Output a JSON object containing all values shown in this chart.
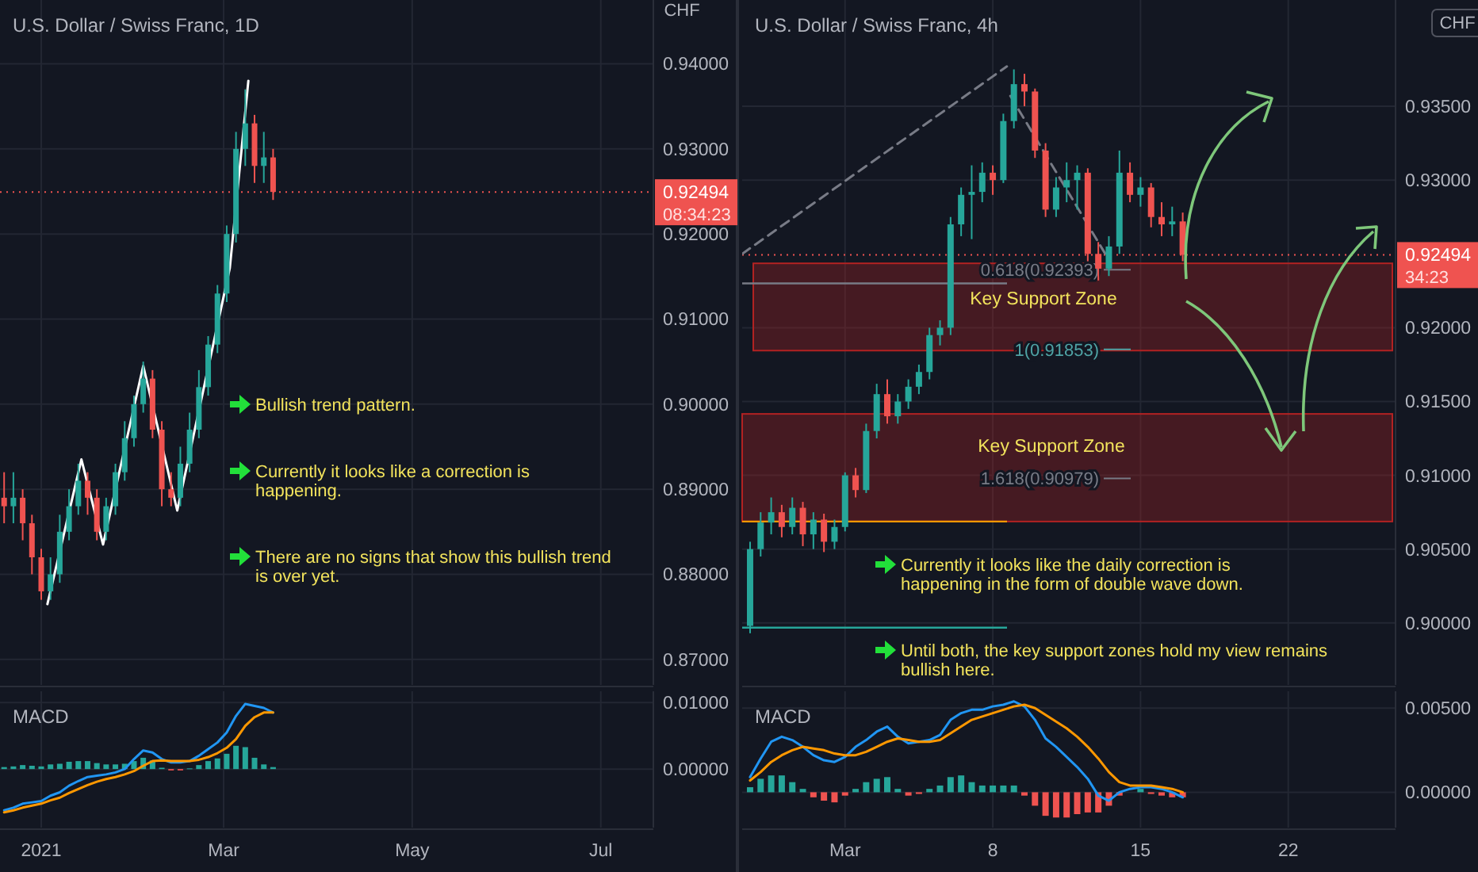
{
  "chart_data": [
    {
      "type": "candlestick",
      "title": "U.S. Dollar / Swiss Franc, 1D",
      "ylabel": "CHF",
      "x": [
        "2020-12-20",
        "2020-12-23",
        "2020-12-26",
        "2020-12-29",
        "2021-01-01",
        "2021-01-04",
        "2021-01-07",
        "2021-01-10",
        "2021-01-13",
        "2021-01-16",
        "2021-01-19",
        "2021-01-22",
        "2021-01-25",
        "2021-01-28",
        "2021-01-31",
        "2021-02-03",
        "2021-02-06",
        "2021-02-09",
        "2021-02-12",
        "2021-02-15",
        "2021-02-18",
        "2021-02-21",
        "2021-02-24",
        "2021-02-27",
        "2021-03-02",
        "2021-03-05",
        "2021-03-08",
        "2021-03-11",
        "2021-03-14",
        "2021-03-17"
      ],
      "ohlc": [
        [
          0.889,
          0.892,
          0.886,
          0.888
        ],
        [
          0.888,
          0.892,
          0.886,
          0.889
        ],
        [
          0.889,
          0.89,
          0.884,
          0.886
        ],
        [
          0.886,
          0.887,
          0.88,
          0.882
        ],
        [
          0.882,
          0.883,
          0.877,
          0.878
        ],
        [
          0.878,
          0.882,
          0.877,
          0.88
        ],
        [
          0.88,
          0.887,
          0.879,
          0.885
        ],
        [
          0.885,
          0.89,
          0.884,
          0.888
        ],
        [
          0.888,
          0.893,
          0.887,
          0.891
        ],
        [
          0.891,
          0.892,
          0.887,
          0.889
        ],
        [
          0.889,
          0.89,
          0.884,
          0.885
        ],
        [
          0.885,
          0.889,
          0.884,
          0.888
        ],
        [
          0.888,
          0.893,
          0.887,
          0.892
        ],
        [
          0.892,
          0.898,
          0.891,
          0.896
        ],
        [
          0.896,
          0.901,
          0.895,
          0.9
        ],
        [
          0.9,
          0.905,
          0.899,
          0.903
        ],
        [
          0.903,
          0.904,
          0.896,
          0.897
        ],
        [
          0.897,
          0.898,
          0.888,
          0.89
        ],
        [
          0.89,
          0.892,
          0.888,
          0.889
        ],
        [
          0.889,
          0.895,
          0.888,
          0.893
        ],
        [
          0.893,
          0.899,
          0.892,
          0.897
        ],
        [
          0.897,
          0.904,
          0.896,
          0.902
        ],
        [
          0.902,
          0.908,
          0.901,
          0.907
        ],
        [
          0.907,
          0.914,
          0.906,
          0.913
        ],
        [
          0.913,
          0.921,
          0.912,
          0.92
        ],
        [
          0.92,
          0.932,
          0.919,
          0.93
        ],
        [
          0.93,
          0.937,
          0.928,
          0.933
        ],
        [
          0.933,
          0.934,
          0.926,
          0.928
        ],
        [
          0.928,
          0.932,
          0.926,
          0.929
        ],
        [
          0.929,
          0.93,
          0.924,
          0.92494
        ]
      ],
      "series": [
        {
          "type": "line",
          "color": "#ffffff",
          "x": [
            "2021-01-03",
            "2021-01-14",
            "2021-01-21",
            "2021-02-03",
            "2021-02-14",
            "2021-03-03",
            "2021-03-09"
          ],
          "values": [
            0.8765,
            0.8935,
            0.8835,
            0.9045,
            0.8875,
            0.916,
            0.938
          ]
        }
      ],
      "xlim": [
        "2020-12-18T16:00",
        "2021-07-18"
      ],
      "xticks": [
        "2021-01-01",
        "2021-03-01",
        "2021-05-01",
        "2021-07-01"
      ],
      "ylim": [
        0.867,
        0.9475
      ],
      "yticks": [
        {
          "value": 0.87,
          "label": "0.87000"
        },
        {
          "value": 0.88,
          "label": "0.88000"
        },
        {
          "value": 0.89,
          "label": "0.89000"
        },
        {
          "value": 0.9,
          "label": "0.90000"
        },
        {
          "value": 0.91,
          "label": "0.91000"
        },
        {
          "value": 0.92,
          "label": "0.92000"
        },
        {
          "value": 0.93,
          "label": "0.93000"
        },
        {
          "value": 0.94,
          "label": "0.94000"
        }
      ],
      "ref_lines": [
        {
          "axis": "y",
          "value": 0.92494,
          "label": "0.92494",
          "color": "#ef5350",
          "line_style": "dotted"
        }
      ],
      "annotations": [
        "Bullish trend pattern.",
        "Currently it looks like a correction is happening.",
        "There are no signs that show this bullish trend is over yet.",
        "08:34:23"
      ],
      "grid": true,
      "tick_labels": "y"
    },
    {
      "type": "line",
      "title": "MACD",
      "x": [
        "2020-12-20",
        "2020-12-23",
        "2020-12-26",
        "2020-12-29",
        "2021-01-01",
        "2021-01-04",
        "2021-01-07",
        "2021-01-10",
        "2021-01-13",
        "2021-01-16",
        "2021-01-19",
        "2021-01-22",
        "2021-01-25",
        "2021-01-28",
        "2021-01-31",
        "2021-02-03",
        "2021-02-06",
        "2021-02-09",
        "2021-02-12",
        "2021-02-15",
        "2021-02-18",
        "2021-02-21",
        "2021-02-24",
        "2021-02-27",
        "2021-03-02",
        "2021-03-05",
        "2021-03-08",
        "2021-03-11",
        "2021-03-14",
        "2021-03-17"
      ],
      "series": [
        {
          "type": "bar",
          "color": "#26a69a",
          "values": [
            0.0003,
            0.0004,
            0.0006,
            0.0005,
            0.0004,
            0.0007,
            0.0008,
            0.0011,
            0.0012,
            0.0012,
            0.0009,
            0.0007,
            0.0007,
            0.0008,
            0.0012,
            0.0017,
            0.0013,
            0.0002,
            null,
            null,
            0.0001,
            0.0006,
            0.0012,
            0.0016,
            0.0023,
            0.0035,
            0.0033,
            0.0017,
            0.0007,
            0.0003
          ]
        },
        {
          "type": "bar",
          "color": "#ef5350",
          "values": [
            null,
            null,
            null,
            null,
            null,
            null,
            null,
            null,
            null,
            null,
            null,
            null,
            null,
            null,
            null,
            null,
            null,
            null,
            -0.0002,
            -0.0002,
            null,
            null,
            null,
            null,
            null,
            null,
            null,
            null,
            null,
            null
          ]
        },
        {
          "type": "line",
          "color": "#2196f3",
          "values": [
            -0.0062,
            -0.0058,
            -0.0052,
            -0.005,
            -0.0048,
            -0.004,
            -0.0035,
            -0.0025,
            -0.0018,
            -0.0012,
            -0.001,
            -0.0008,
            -0.0005,
            0.0,
            0.0015,
            0.0028,
            0.0025,
            0.0015,
            0.001,
            0.001,
            0.0012,
            0.002,
            0.003,
            0.004,
            0.0055,
            0.008,
            0.0098,
            0.0095,
            0.0092,
            0.0085
          ]
        },
        {
          "type": "line",
          "color": "#ff9800",
          "values": [
            -0.0065,
            -0.0062,
            -0.0058,
            -0.0055,
            -0.0052,
            -0.0047,
            -0.0043,
            -0.0036,
            -0.003,
            -0.0024,
            -0.0019,
            -0.0015,
            -0.0012,
            -0.0008,
            -0.0003,
            0.0005,
            0.0012,
            0.0013,
            0.0012,
            0.0012,
            0.0012,
            0.0014,
            0.0018,
            0.0024,
            0.0032,
            0.0045,
            0.0065,
            0.0078,
            0.0085,
            0.0085
          ]
        }
      ],
      "xlim": [
        "2020-12-18T16:00",
        "2021-07-18"
      ],
      "xticks": [
        {
          "value": "2021-01-01",
          "label": "2021"
        },
        {
          "value": "2021-03-01",
          "label": "Mar"
        },
        {
          "value": "2021-05-01",
          "label": "May"
        },
        {
          "value": "2021-07-01",
          "label": "Jul"
        }
      ],
      "ylim": [
        -0.0088,
        0.0117
      ],
      "yticks": [
        {
          "value": 0,
          "label": "0.00000"
        },
        {
          "value": 0.01,
          "label": "0.01000"
        }
      ],
      "grid": true
    },
    {
      "type": "candlestick",
      "title": "U.S. Dollar / Swiss Franc, 4h",
      "ylabel": "CHF",
      "x": [
        "2021-02-24T12:00",
        "2021-02-25T00:00",
        "2021-02-25T12:00",
        "2021-02-26T00:00",
        "2021-02-26T12:00",
        "2021-02-27T00:00",
        "2021-02-27T12:00",
        "2021-02-28T00:00",
        "2021-02-28T12:00",
        "2021-03-01T00:00",
        "2021-03-01T12:00",
        "2021-03-02T00:00",
        "2021-03-02T12:00",
        "2021-03-03T00:00",
        "2021-03-03T12:00",
        "2021-03-04T00:00",
        "2021-03-04T12:00",
        "2021-03-05T00:00",
        "2021-03-05T12:00",
        "2021-03-06T00:00",
        "2021-03-06T12:00",
        "2021-03-07T00:00",
        "2021-03-07T12:00",
        "2021-03-08T00:00",
        "2021-03-08T12:00",
        "2021-03-09T00:00",
        "2021-03-09T12:00",
        "2021-03-10T00:00",
        "2021-03-10T12:00",
        "2021-03-11T00:00",
        "2021-03-11T12:00",
        "2021-03-12T00:00",
        "2021-03-12T12:00",
        "2021-03-13T00:00",
        "2021-03-13T12:00",
        "2021-03-14T00:00",
        "2021-03-14T12:00",
        "2021-03-15T00:00",
        "2021-03-15T12:00",
        "2021-03-16T00:00",
        "2021-03-16T12:00",
        "2021-03-17T00:00"
      ],
      "ohlc": [
        [
          0.8998,
          0.9055,
          0.8993,
          0.905
        ],
        [
          0.905,
          0.9075,
          0.9045,
          0.9068
        ],
        [
          0.9068,
          0.9085,
          0.906,
          0.9075
        ],
        [
          0.9075,
          0.908,
          0.9058,
          0.9065
        ],
        [
          0.9065,
          0.9085,
          0.906,
          0.9078
        ],
        [
          0.9078,
          0.9082,
          0.9052,
          0.906
        ],
        [
          0.906,
          0.9075,
          0.905,
          0.907
        ],
        [
          0.907,
          0.9074,
          0.9048,
          0.9055
        ],
        [
          0.9055,
          0.907,
          0.905,
          0.9065
        ],
        [
          0.9065,
          0.9102,
          0.9062,
          0.91
        ],
        [
          0.91,
          0.9105,
          0.9085,
          0.909
        ],
        [
          0.909,
          0.9135,
          0.9088,
          0.913
        ],
        [
          0.913,
          0.9162,
          0.9125,
          0.9155
        ],
        [
          0.9155,
          0.9165,
          0.9135,
          0.914
        ],
        [
          0.914,
          0.9155,
          0.9135,
          0.915
        ],
        [
          0.915,
          0.9165,
          0.9145,
          0.916
        ],
        [
          0.916,
          0.9175,
          0.9155,
          0.917
        ],
        [
          0.917,
          0.92,
          0.9165,
          0.9195
        ],
        [
          0.9195,
          0.9205,
          0.9188,
          0.92
        ],
        [
          0.92,
          0.9275,
          0.9195,
          0.927
        ],
        [
          0.927,
          0.9295,
          0.9262,
          0.929
        ],
        [
          0.929,
          0.931,
          0.926,
          0.9292
        ],
        [
          0.9292,
          0.9312,
          0.9285,
          0.9305
        ],
        [
          0.9305,
          0.931,
          0.929,
          0.93
        ],
        [
          0.93,
          0.9345,
          0.9298,
          0.934
        ],
        [
          0.934,
          0.9375,
          0.9335,
          0.9365
        ],
        [
          0.9365,
          0.9372,
          0.935,
          0.936
        ],
        [
          0.936,
          0.9362,
          0.9315,
          0.932
        ],
        [
          0.932,
          0.9325,
          0.9275,
          0.928
        ],
        [
          0.928,
          0.9302,
          0.9275,
          0.9295
        ],
        [
          0.9295,
          0.9312,
          0.9285,
          0.93
        ],
        [
          0.93,
          0.931,
          0.928,
          0.9305
        ],
        [
          0.9305,
          0.9308,
          0.9245,
          0.925
        ],
        [
          0.925,
          0.9258,
          0.9232,
          0.924
        ],
        [
          0.924,
          0.9262,
          0.9235,
          0.9255
        ],
        [
          0.9255,
          0.932,
          0.925,
          0.9305
        ],
        [
          0.9305,
          0.9312,
          0.9285,
          0.929
        ],
        [
          0.929,
          0.9302,
          0.9282,
          0.9295
        ],
        [
          0.9295,
          0.9298,
          0.9268,
          0.9275
        ],
        [
          0.9275,
          0.9285,
          0.9262,
          0.927
        ],
        [
          0.927,
          0.9282,
          0.9262,
          0.9272
        ],
        [
          0.9272,
          0.9278,
          0.9245,
          0.92494
        ]
      ],
      "series": [
        {
          "type": "line",
          "color": "#787b86",
          "line_style": "dashed",
          "x": [
            "2021-02-24T03:00",
            "2021-03-08T16:00"
          ],
          "values": [
            0.925,
            0.9377
          ]
        },
        {
          "type": "line",
          "color": "#787b86",
          "line_style": "dashed",
          "x": [
            "2021-03-08T20:00",
            "2021-03-13T13:00"
          ],
          "values": [
            0.9357,
            0.9245
          ]
        }
      ],
      "xlim": [
        "2021-02-24T03:00",
        "2021-03-27T02:00"
      ],
      "xticks": [
        "2021-03-01",
        "2021-03-08",
        "2021-03-15",
        "2021-03-22"
      ],
      "ylim": [
        0.8958,
        0.9422
      ],
      "yticks": [
        {
          "value": 0.9,
          "label": "0.90000"
        },
        {
          "value": 0.905,
          "label": "0.90500"
        },
        {
          "value": 0.91,
          "label": "0.91000"
        },
        {
          "value": 0.915,
          "label": "0.91500"
        },
        {
          "value": 0.92,
          "label": "0.92000"
        },
        {
          "value": 0.93,
          "label": "0.93000"
        },
        {
          "value": 0.935,
          "label": "0.93500"
        }
      ],
      "bands": [
        {
          "axis": "y",
          "from": 0.91845,
          "to": 0.92436,
          "label": "Key Support Zone",
          "color": "#b22222"
        },
        {
          "axis": "y",
          "from": 0.90687,
          "to": 0.91416,
          "label": "Key Support Zone",
          "color": "#b22222"
        }
      ],
      "ref_lines": [
        {
          "axis": "y",
          "value": 0.92494,
          "label": "0.92494",
          "color": "#ef5350",
          "line_style": "dotted"
        },
        {
          "axis": "y",
          "value": 0.92393,
          "label": "0.618(0.92393)",
          "color": "#787b86"
        },
        {
          "axis": "y",
          "value": 0.91853,
          "label": "1(0.91853)",
          "color": "#4fa3a5"
        },
        {
          "axis": "y",
          "value": 0.90979,
          "label": "1.618(0.90979)",
          "color": "#787b86"
        },
        {
          "axis": "y",
          "value": 0.923,
          "color": "#787b86"
        },
        {
          "axis": "y",
          "value": 0.90687,
          "color": "#ff9800"
        },
        {
          "axis": "y",
          "value": 0.89968,
          "color": "#26a69a"
        }
      ],
      "annotations": [
        "Currently it looks like the daily correction is happening in the form of double wave down.",
        "Until both, the key support zones hold my view remains bullish here.",
        "34:23"
      ],
      "grid": true,
      "tick_labels": "y"
    },
    {
      "type": "line",
      "title": "MACD",
      "x": [
        "2021-02-24T12:00",
        "2021-02-25T00:00",
        "2021-02-25T12:00",
        "2021-02-26T00:00",
        "2021-02-26T12:00",
        "2021-02-27T00:00",
        "2021-02-27T12:00",
        "2021-02-28T00:00",
        "2021-02-28T12:00",
        "2021-03-01T00:00",
        "2021-03-01T12:00",
        "2021-03-02T00:00",
        "2021-03-02T12:00",
        "2021-03-03T00:00",
        "2021-03-03T12:00",
        "2021-03-04T00:00",
        "2021-03-04T12:00",
        "2021-03-05T00:00",
        "2021-03-05T12:00",
        "2021-03-06T00:00",
        "2021-03-06T12:00",
        "2021-03-07T00:00",
        "2021-03-07T12:00",
        "2021-03-08T00:00",
        "2021-03-08T12:00",
        "2021-03-09T00:00",
        "2021-03-09T12:00",
        "2021-03-10T00:00",
        "2021-03-10T12:00",
        "2021-03-11T00:00",
        "2021-03-11T12:00",
        "2021-03-12T00:00",
        "2021-03-12T12:00",
        "2021-03-13T00:00",
        "2021-03-13T12:00",
        "2021-03-14T00:00",
        "2021-03-14T12:00",
        "2021-03-15T00:00",
        "2021-03-15T12:00",
        "2021-03-16T00:00",
        "2021-03-16T12:00",
        "2021-03-17T00:00"
      ],
      "series": [
        {
          "type": "bar",
          "color": "#26a69a",
          "values": [
            0.0003,
            0.0008,
            0.001,
            0.001,
            0.0006,
            0.0002,
            null,
            null,
            null,
            null,
            0.0002,
            0.0006,
            0.0008,
            0.0009,
            0.0002,
            null,
            null,
            0.0002,
            0.0004,
            0.0009,
            0.001,
            0.0006,
            0.0004,
            0.0004,
            0.0004,
            0.0004,
            null,
            null,
            null,
            null,
            null,
            null,
            null,
            null,
            null,
            null,
            null,
            0.0002,
            null,
            null,
            null,
            null
          ]
        },
        {
          "type": "bar",
          "color": "#ef5350",
          "values": [
            null,
            null,
            null,
            null,
            null,
            null,
            -0.0003,
            -0.0005,
            -0.0006,
            -0.0002,
            null,
            null,
            null,
            null,
            null,
            -0.0002,
            -0.0001,
            null,
            null,
            null,
            null,
            null,
            null,
            null,
            null,
            null,
            -0.0002,
            -0.0008,
            -0.0014,
            -0.0015,
            -0.0015,
            -0.0013,
            -0.0012,
            -0.0012,
            -0.0008,
            -0.0002,
            null,
            null,
            -0.0001,
            -0.0002,
            -0.0003,
            -0.0003
          ]
        },
        {
          "type": "line",
          "color": "#2196f3",
          "values": [
            0.0009,
            0.002,
            0.003,
            0.0033,
            0.0031,
            0.0027,
            0.0022,
            0.0019,
            0.0018,
            0.0021,
            0.0027,
            0.0031,
            0.0036,
            0.0039,
            0.0033,
            0.0029,
            0.003,
            0.0031,
            0.0034,
            0.0043,
            0.0047,
            0.0049,
            0.0049,
            0.0051,
            0.0052,
            0.0054,
            0.0051,
            0.0043,
            0.0032,
            0.0027,
            0.0021,
            0.0015,
            0.0008,
            -0.0002,
            -0.0005,
            0.0,
            0.0002,
            0.0003,
            0.0003,
            0.0002,
            0.0,
            -0.0003
          ]
        },
        {
          "type": "line",
          "color": "#ff9800",
          "values": [
            0.0007,
            0.0012,
            0.0018,
            0.0022,
            0.0025,
            0.0027,
            0.0026,
            0.0025,
            0.0023,
            0.0022,
            0.0022,
            0.0024,
            0.0027,
            0.003,
            0.0032,
            0.0031,
            0.003,
            0.003,
            0.0031,
            0.0035,
            0.0039,
            0.0043,
            0.0045,
            0.0047,
            0.0049,
            0.0051,
            0.0052,
            0.005,
            0.0046,
            0.0042,
            0.0038,
            0.0033,
            0.0027,
            0.002,
            0.0012,
            0.0006,
            0.0004,
            0.0004,
            0.0004,
            0.0003,
            0.0002,
            0.0
          ]
        }
      ],
      "xlim": [
        "2021-02-24T03:00",
        "2021-03-27T02:00"
      ],
      "xticks": [
        {
          "value": "2021-03-01",
          "label": "Mar"
        },
        {
          "value": "2021-03-08",
          "label": "8"
        },
        {
          "value": "2021-03-15",
          "label": "15"
        },
        {
          "value": "2021-03-22",
          "label": "22"
        }
      ],
      "ylim": [
        -0.0021,
        0.006
      ],
      "yticks": [
        {
          "value": 0,
          "label": "0.00000"
        },
        {
          "value": 0.005,
          "label": "0.00500"
        }
      ],
      "grid": true
    }
  ]
}
